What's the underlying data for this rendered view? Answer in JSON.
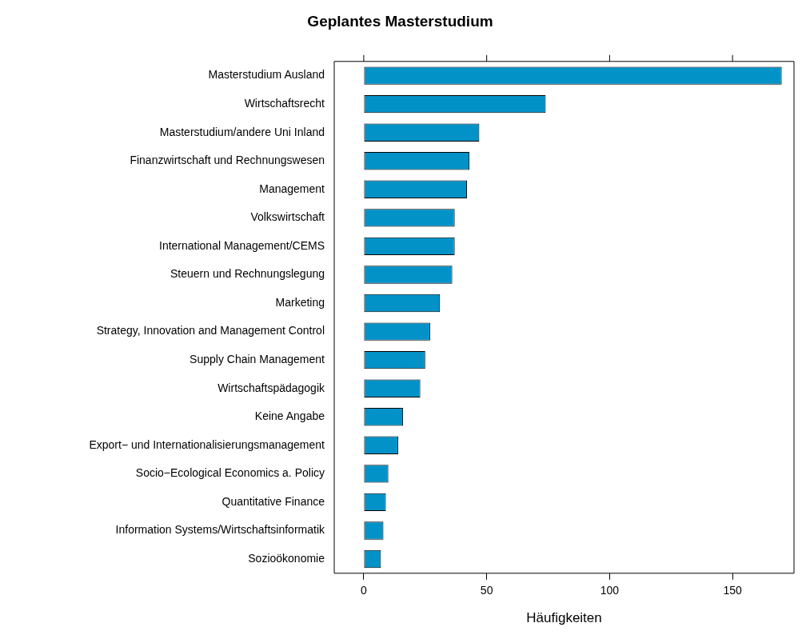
{
  "chart_data": {
    "type": "bar",
    "orientation": "horizontal",
    "title": "Geplantes Masterstudium",
    "xlabel": "Häufigkeiten",
    "categories": [
      "Masterstudium Ausland",
      "Wirtschaftsrecht",
      "Masterstudium/andere Uni Inland",
      "Finanzwirtschaft und Rechnungswesen",
      "Management",
      "Volkswirtschaft",
      "International Management/CEMS",
      "Steuern und Rechnungslegung",
      "Marketing",
      "Strategy, Innovation and Management Control",
      "Supply Chain Management",
      "Wirtschaftspädagogik",
      "Keine Angabe",
      "Export− und Internationalisierungsmanagement",
      "Socio−Ecological Economics a. Policy",
      "Quantitative Finance",
      "Information Systems/Wirtschaftsinformatik",
      "Sozioökonomie"
    ],
    "values": [
      170,
      74,
      47,
      43,
      42,
      37,
      37,
      36,
      31,
      27,
      25,
      23,
      16,
      14,
      10,
      9,
      8,
      7
    ],
    "color": "#0292c8",
    "xlim": [
      -12,
      175
    ],
    "xticks": [
      0,
      50,
      100,
      150
    ],
    "grid": false,
    "legend": false
  }
}
